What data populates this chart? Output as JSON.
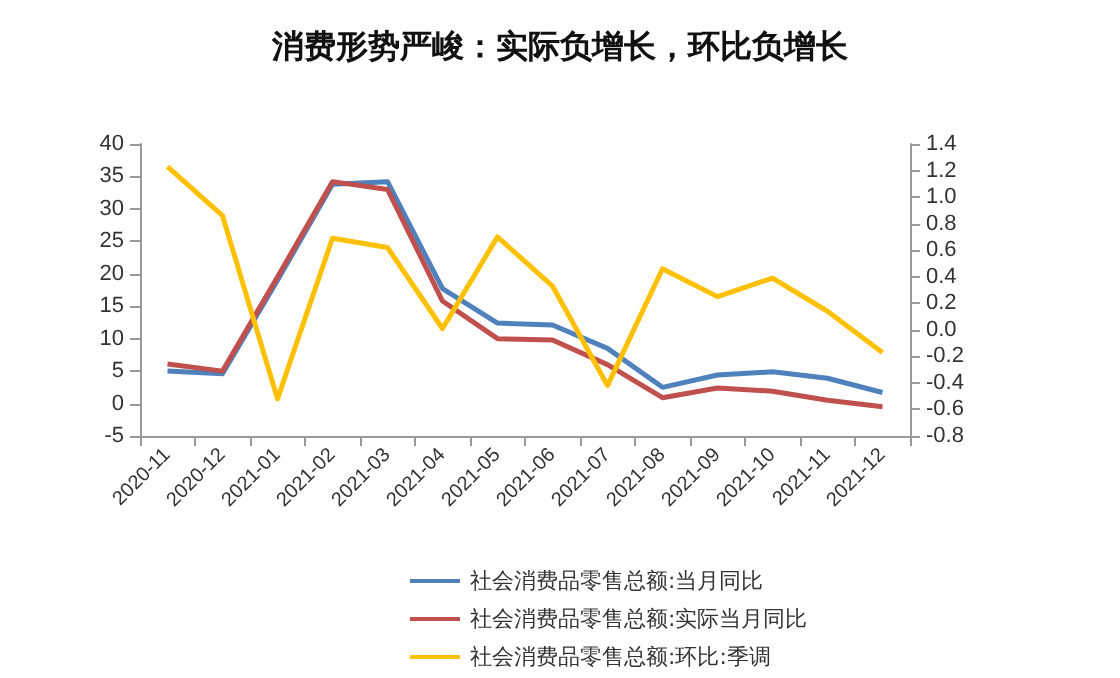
{
  "chart_data": {
    "type": "line",
    "title": "消费形势严峻：实际负增长，环比负增长",
    "categories": [
      "2020-11",
      "2020-12",
      "2021-01",
      "2021-02",
      "2021-03",
      "2021-04",
      "2021-05",
      "2021-06",
      "2021-07",
      "2021-08",
      "2021-09",
      "2021-10",
      "2021-11",
      "2021-12"
    ],
    "series": [
      {
        "name": "社会消费品零售总额:当月同比",
        "color": "#4f81bd",
        "values": [
          5.0,
          4.6,
          19.0,
          33.8,
          34.2,
          17.7,
          12.4,
          12.1,
          8.5,
          2.5,
          4.4,
          4.9,
          3.9,
          1.7
        ]
      },
      {
        "name": "社会消费品零售总额:实际当月同比",
        "color": "#c0504d",
        "values": [
          6.1,
          5.0,
          19.5,
          34.2,
          33.0,
          15.8,
          10.0,
          9.8,
          6.0,
          0.9,
          2.4,
          1.9,
          0.5,
          -0.5
        ]
      },
      {
        "name": "社会消费品零售总额:环比:季调",
        "color": "#ffc000",
        "axis": "y2",
        "values": [
          1.23,
          0.86,
          -0.52,
          0.69,
          0.62,
          0.01,
          0.7,
          0.33,
          -0.42,
          0.46,
          0.25,
          0.39,
          0.14,
          -0.17
        ]
      }
    ],
    "ylim": [
      -5,
      40
    ],
    "yticks": [
      -5,
      0,
      5,
      10,
      15,
      20,
      25,
      30,
      35,
      40
    ],
    "y2lim": [
      -0.8,
      1.4
    ],
    "y2ticks": [
      {
        "value": -0.8,
        "label": "-0.8"
      },
      {
        "value": -0.6,
        "label": "-0.6"
      },
      {
        "value": -0.4,
        "label": "-0.4"
      },
      {
        "value": -0.2,
        "label": "-0.2"
      },
      {
        "value": 0,
        "label": "0.0"
      },
      {
        "value": 0.2,
        "label": "0.2"
      },
      {
        "value": 0.4,
        "label": "0.4"
      },
      {
        "value": 0.6,
        "label": "0.6"
      },
      {
        "value": 0.8,
        "label": "0.8"
      },
      {
        "value": 1.0,
        "label": "1.0"
      },
      {
        "value": 1.2,
        "label": "1.2"
      },
      {
        "value": 1.4,
        "label": "1.4"
      }
    ],
    "grid": false,
    "legend": "bottom",
    "marker": "none",
    "line_style": "solid"
  }
}
